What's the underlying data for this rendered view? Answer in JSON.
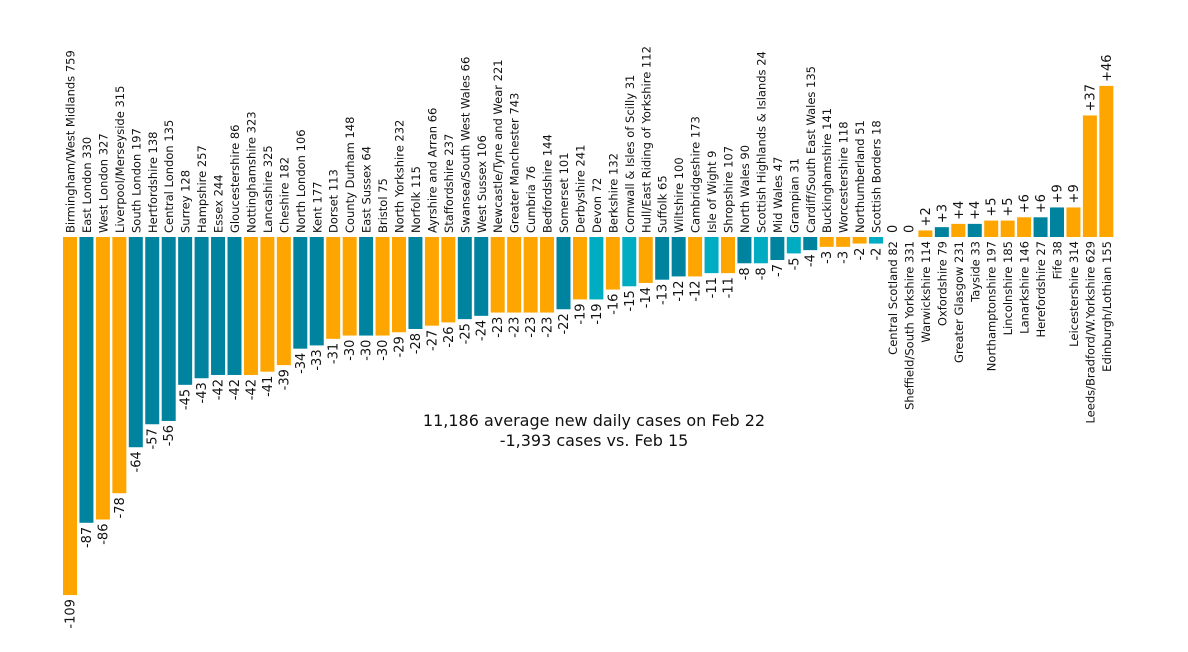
{
  "chart_data": {
    "type": "bar",
    "colors": {
      "orange": "#ffa500",
      "blue": "#00839f",
      "cyan": "#00acc1"
    },
    "annotation": {
      "line1": "11,186 average new daily cases on Feb 22",
      "line2": "-1,393 cases vs. Feb 15"
    },
    "bars": [
      {
        "label": "Birmingham/West Midlands 759",
        "value": -109,
        "value_label": "-109",
        "color": "orange"
      },
      {
        "label": "East London 330",
        "value": -87,
        "value_label": "-87",
        "color": "blue"
      },
      {
        "label": "West London 327",
        "value": -86,
        "value_label": "-86",
        "color": "orange"
      },
      {
        "label": "Liverpool/Merseyside 315",
        "value": -78,
        "value_label": "-78",
        "color": "orange"
      },
      {
        "label": "South London 197",
        "value": -64,
        "value_label": "-64",
        "color": "blue"
      },
      {
        "label": "Hertfordshire 138",
        "value": -57,
        "value_label": "-57",
        "color": "blue"
      },
      {
        "label": "Central London 135",
        "value": -56,
        "value_label": "-56",
        "color": "blue"
      },
      {
        "label": "Surrey 128",
        "value": -45,
        "value_label": "-45",
        "color": "blue"
      },
      {
        "label": "Hampshire 257",
        "value": -43,
        "value_label": "-43",
        "color": "blue"
      },
      {
        "label": "Essex 244",
        "value": -42,
        "value_label": "-42",
        "color": "blue"
      },
      {
        "label": "Gloucestershire 86",
        "value": -42,
        "value_label": "-42",
        "color": "blue"
      },
      {
        "label": "Nottinghamshire 323",
        "value": -42,
        "value_label": "-42",
        "color": "orange"
      },
      {
        "label": "Lancashire 325",
        "value": -41,
        "value_label": "-41",
        "color": "orange"
      },
      {
        "label": "Cheshire 182",
        "value": -39,
        "value_label": "-39",
        "color": "orange"
      },
      {
        "label": "North London 106",
        "value": -34,
        "value_label": "-34",
        "color": "blue"
      },
      {
        "label": "Kent 177",
        "value": -33,
        "value_label": "-33",
        "color": "blue"
      },
      {
        "label": "Dorset 113",
        "value": -31,
        "value_label": "-31",
        "color": "orange"
      },
      {
        "label": "County Durham 148",
        "value": -30,
        "value_label": "-30",
        "color": "orange"
      },
      {
        "label": "East Sussex 64",
        "value": -30,
        "value_label": "-30",
        "color": "blue"
      },
      {
        "label": "Bristol 75",
        "value": -30,
        "value_label": "-30",
        "color": "orange"
      },
      {
        "label": "North Yorkshire 232",
        "value": -29,
        "value_label": "-29",
        "color": "orange"
      },
      {
        "label": "Norfolk 115",
        "value": -28,
        "value_label": "-28",
        "color": "blue"
      },
      {
        "label": "Ayrshire and Arran 66",
        "value": -27,
        "value_label": "-27",
        "color": "orange"
      },
      {
        "label": "Staffordshire 237",
        "value": -26,
        "value_label": "-26",
        "color": "orange"
      },
      {
        "label": "Swansea/South West Wales 66",
        "value": -25,
        "value_label": "-25",
        "color": "blue"
      },
      {
        "label": "West Sussex 106",
        "value": -24,
        "value_label": "-24",
        "color": "blue"
      },
      {
        "label": "Newcastle/Tyne and Wear 221",
        "value": -23,
        "value_label": "-23",
        "color": "orange"
      },
      {
        "label": "Greater Manchester 743",
        "value": -23,
        "value_label": "-23",
        "color": "orange"
      },
      {
        "label": "Cumbria 76",
        "value": -23,
        "value_label": "-23",
        "color": "orange"
      },
      {
        "label": "Bedfordshire 144",
        "value": -23,
        "value_label": "-23",
        "color": "orange"
      },
      {
        "label": "Somerset 101",
        "value": -22,
        "value_label": "-22",
        "color": "blue"
      },
      {
        "label": "Derbyshire 241",
        "value": -19,
        "value_label": "-19",
        "color": "orange"
      },
      {
        "label": "Devon 72",
        "value": -19,
        "value_label": "-19",
        "color": "cyan"
      },
      {
        "label": "Berkshire 132",
        "value": -16,
        "value_label": "-16",
        "color": "orange"
      },
      {
        "label": "Cornwall & Isles of Scilly 31",
        "value": -15,
        "value_label": "-15",
        "color": "cyan"
      },
      {
        "label": "Hull/East Riding of Yorkshire 112",
        "value": -14,
        "value_label": "-14",
        "color": "orange"
      },
      {
        "label": "Suffolk 65",
        "value": -13,
        "value_label": "-13",
        "color": "blue"
      },
      {
        "label": "Wiltshire 100",
        "value": -12,
        "value_label": "-12",
        "color": "blue"
      },
      {
        "label": "Cambridgeshire 173",
        "value": -12,
        "value_label": "-12",
        "color": "orange"
      },
      {
        "label": "Isle of Wight 9",
        "value": -11,
        "value_label": "-11",
        "color": "cyan"
      },
      {
        "label": "Shropshire 107",
        "value": -11,
        "value_label": "-11",
        "color": "orange"
      },
      {
        "label": "North Wales 90",
        "value": -8,
        "value_label": "-8",
        "color": "blue"
      },
      {
        "label": "Scottish Highlands & Islands 24",
        "value": -8,
        "value_label": "-8",
        "color": "cyan"
      },
      {
        "label": "Mid Wales 47",
        "value": -7,
        "value_label": "-7",
        "color": "blue"
      },
      {
        "label": "Grampian 31",
        "value": -5,
        "value_label": "-5",
        "color": "cyan"
      },
      {
        "label": "Cardiff/South East Wales 135",
        "value": -4,
        "value_label": "-4",
        "color": "blue"
      },
      {
        "label": "Buckinghamshire 141",
        "value": -3,
        "value_label": "-3",
        "color": "orange"
      },
      {
        "label": "Worcestershire 118",
        "value": -3,
        "value_label": "-3",
        "color": "orange"
      },
      {
        "label": "Northumberland 51",
        "value": -2,
        "value_label": "-2",
        "color": "orange"
      },
      {
        "label": "Scottish Borders 18",
        "value": -2,
        "value_label": "-2",
        "color": "cyan"
      },
      {
        "label": "Central Scotland 82",
        "value": 0,
        "value_label": "0",
        "color": "orange"
      },
      {
        "label": "Sheffield/South Yorkshire 331",
        "value": 0,
        "value_label": "0",
        "color": "orange"
      },
      {
        "label": "Warwickshire 114",
        "value": 2,
        "value_label": "+2",
        "color": "orange"
      },
      {
        "label": "Oxfordshire 79",
        "value": 3,
        "value_label": "+3",
        "color": "blue"
      },
      {
        "label": "Greater Glasgow 231",
        "value": 4,
        "value_label": "+4",
        "color": "orange"
      },
      {
        "label": "Tayside 33",
        "value": 4,
        "value_label": "+4",
        "color": "blue"
      },
      {
        "label": "Northamptonshire 197",
        "value": 5,
        "value_label": "+5",
        "color": "orange"
      },
      {
        "label": "Lincolnshire 185",
        "value": 5,
        "value_label": "+5",
        "color": "orange"
      },
      {
        "label": "Lanarkshire 146",
        "value": 6,
        "value_label": "+6",
        "color": "orange"
      },
      {
        "label": "Herefordshire 27",
        "value": 6,
        "value_label": "+6",
        "color": "blue"
      },
      {
        "label": "Fife 38",
        "value": 9,
        "value_label": "+9",
        "color": "blue"
      },
      {
        "label": "Leicestershire 314",
        "value": 9,
        "value_label": "+9",
        "color": "orange"
      },
      {
        "label": "Leeds/Bradford/W.Yorkshire 629",
        "value": 37,
        "value_label": "+37",
        "color": "orange"
      },
      {
        "label": "Edinburgh/Lothian 155",
        "value": 46,
        "value_label": "+46",
        "color": "orange"
      }
    ]
  }
}
